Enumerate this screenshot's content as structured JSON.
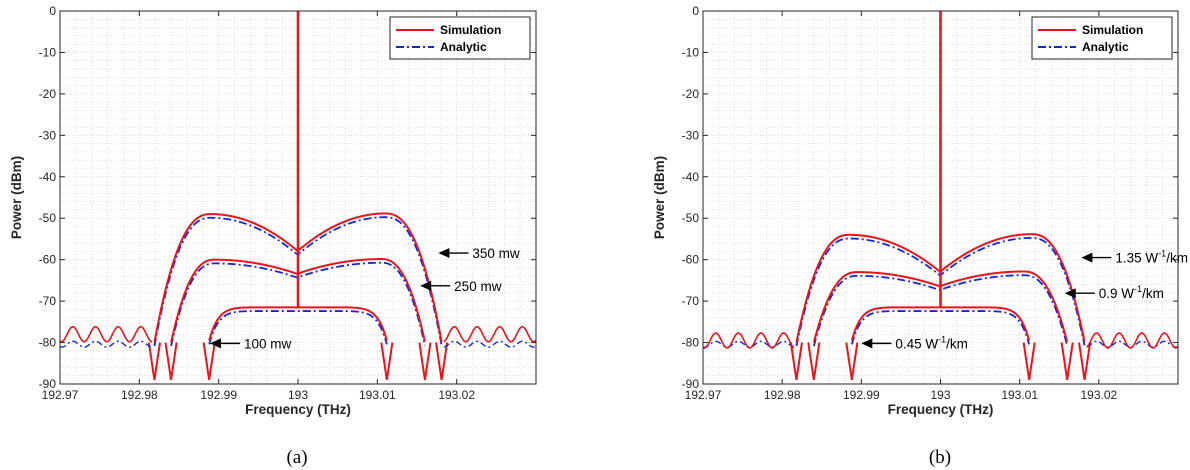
{
  "chart_data": [
    {
      "type": "line",
      "panel_label": "(a)",
      "xlabel": "Frequency (THz)",
      "ylabel": "Power (dBm)",
      "xlim": [
        192.97,
        193.03
      ],
      "ylim": [
        -90,
        0
      ],
      "xticks": [
        "192.97",
        "192.98",
        "192.99",
        "193",
        "193.01",
        "193.02"
      ],
      "yticks": [
        "0",
        "-10",
        "-20",
        "-30",
        "-40",
        "-50",
        "-60",
        "-70",
        "-80",
        "-90"
      ],
      "grid": "on (major and minor, dotted)",
      "legend_position": "top-right",
      "legend": [
        "Simulation",
        "Analytic"
      ],
      "carrier": {
        "x": 193.0,
        "y_top": 0
      },
      "noise_floor": {
        "Simulation": -78,
        "Analytic": -80
      },
      "series": [
        {
          "label": "350 mw",
          "floor": -80,
          "peak": -49,
          "center": -58,
          "cutoff": 0.0181,
          "shoulder_offset": 0.011,
          "annotation": {
            "text": "350 mw",
            "arrow_tip": [
              193.0177,
              -58.4
            ]
          }
        },
        {
          "label": "250 mw",
          "floor": -80,
          "peak": -60,
          "center": -63.5,
          "cutoff": 0.016,
          "shoulder_offset": 0.0105,
          "annotation": {
            "text": "250 mw",
            "arrow_tip": [
              193.0154,
              -66.3
            ]
          }
        },
        {
          "label": "100 mw",
          "floor": -80,
          "peak": -71.5,
          "center": -71.5,
          "cutoff": 0.0112,
          "shoulder_offset": 0.0,
          "annotation": {
            "text": "100 mw",
            "arrow_tip": [
              192.9889,
              -80.2
            ]
          }
        }
      ]
    },
    {
      "type": "line",
      "panel_label": "(b)",
      "xlabel": "Frequency (THz)",
      "ylabel": "Power (dBm)",
      "xlim": [
        192.97,
        193.03
      ],
      "ylim": [
        -90,
        0
      ],
      "xticks": [
        "192.97",
        "192.98",
        "192.99",
        "193",
        "193.01",
        "193.02"
      ],
      "yticks": [
        "0",
        "-10",
        "-20",
        "-30",
        "-40",
        "-50",
        "-60",
        "-70",
        "-80",
        "-90"
      ],
      "grid": "on (major and minor, dotted)",
      "legend_position": "top-right",
      "legend": [
        "Simulation",
        "Analytic"
      ],
      "carrier": {
        "x": 193.0,
        "y_top": 0
      },
      "noise_floor": {
        "Simulation": -79.5,
        "Analytic": -80
      },
      "series": [
        {
          "label": "1.35 W-1/km",
          "floor": -80,
          "peak": -54,
          "center": -63,
          "cutoff": 0.0182,
          "shoulder_offset": 0.0115,
          "annotation": {
            "text_main": "1.35 W",
            "text_sup": "-1",
            "text_tail": "/km",
            "arrow_tip": [
              193.0178,
              -59.5
            ]
          }
        },
        {
          "label": "0.9 W-1/km",
          "floor": -80,
          "peak": -63,
          "center": -66.5,
          "cutoff": 0.016,
          "shoulder_offset": 0.0105,
          "annotation": {
            "text_main": "0.9 W",
            "text_sup": "-1",
            "text_tail": "/km",
            "arrow_tip": [
              193.0157,
              -68.1
            ]
          }
        },
        {
          "label": "0.45 W-1/km",
          "floor": -80,
          "peak": -71.5,
          "center": -71.5,
          "cutoff": 0.0112,
          "shoulder_offset": 0.0,
          "annotation": {
            "text_main": "0.45 W",
            "text_sup": "-1",
            "text_tail": "/km",
            "arrow_tip": [
              192.99,
              -80.2
            ]
          }
        }
      ]
    }
  ],
  "colors": {
    "simulation": "#e8141c",
    "analytic": "#1428d2",
    "grid": "#c8c8c8",
    "axis": "#262626"
  }
}
